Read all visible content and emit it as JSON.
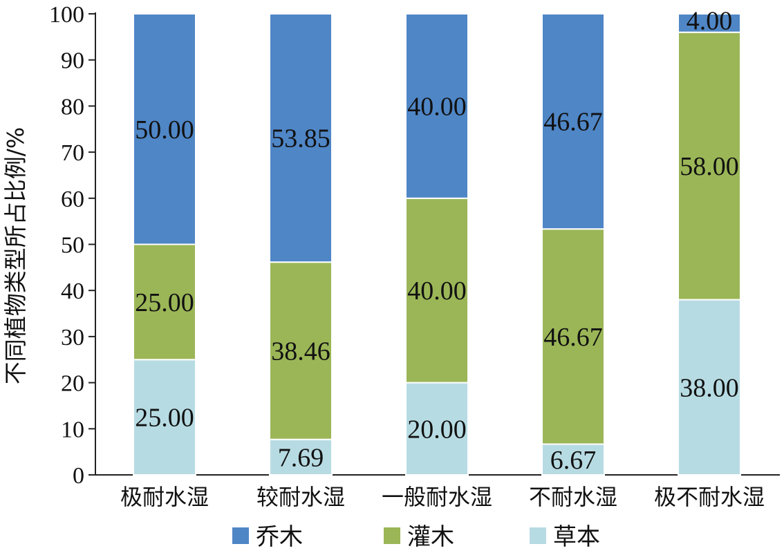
{
  "chart_data": {
    "type": "bar",
    "stacked": true,
    "categories": [
      "极耐水湿",
      "较耐水湿",
      "一般耐水湿",
      "不耐水湿",
      "极不耐水湿"
    ],
    "series": [
      {
        "name": "草本",
        "color": "#b7dbe3",
        "values": [
          25.0,
          7.69,
          20.0,
          6.67,
          38.0
        ],
        "labels": [
          "25.00",
          "7.69",
          "20.00",
          "6.67",
          "38.00"
        ]
      },
      {
        "name": "灌木",
        "color": "#9bb657",
        "values": [
          25.0,
          38.46,
          40.0,
          46.67,
          58.0
        ],
        "labels": [
          "25.00",
          "38.46",
          "40.00",
          "46.67",
          "58.00"
        ]
      },
      {
        "name": "乔木",
        "color": "#4f86c6",
        "values": [
          50.0,
          53.85,
          40.0,
          46.67,
          4.0
        ],
        "labels": [
          "50.00",
          "53.85",
          "40.00",
          "46.67",
          "4.00"
        ]
      }
    ],
    "legend_order": [
      "乔木",
      "灌木",
      "草本"
    ],
    "legend_position": "bottom",
    "ylabel": "不同植物类型所占比例/%",
    "ylim": [
      0,
      100
    ],
    "yticks": [
      0,
      10,
      20,
      30,
      40,
      50,
      60,
      70,
      80,
      90,
      100
    ],
    "grid": false
  }
}
